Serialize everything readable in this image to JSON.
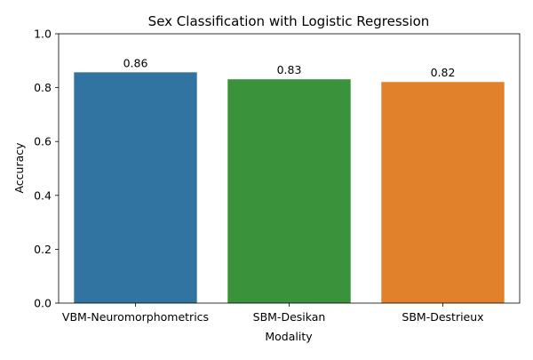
{
  "chart_data": {
    "type": "bar",
    "title": "Sex Classification with Logistic Regression",
    "xlabel": "Modality",
    "ylabel": "Accuracy",
    "ylim": [
      0,
      1
    ],
    "yticks": [
      0.0,
      0.2,
      0.4,
      0.6,
      0.8,
      1.0
    ],
    "ytick_labels": [
      "0.0",
      "0.2",
      "0.4",
      "0.6",
      "0.8",
      "1.0"
    ],
    "categories": [
      "VBM-Neuromorphometrics",
      "SBM-Desikan",
      "SBM-Destrieux"
    ],
    "values": [
      0.857,
      0.831,
      0.821
    ],
    "data_labels": [
      "0.86",
      "0.83",
      "0.82"
    ],
    "colors": [
      "#3274a1",
      "#3a923a",
      "#e1812c"
    ],
    "grid": false,
    "legend": "none"
  }
}
